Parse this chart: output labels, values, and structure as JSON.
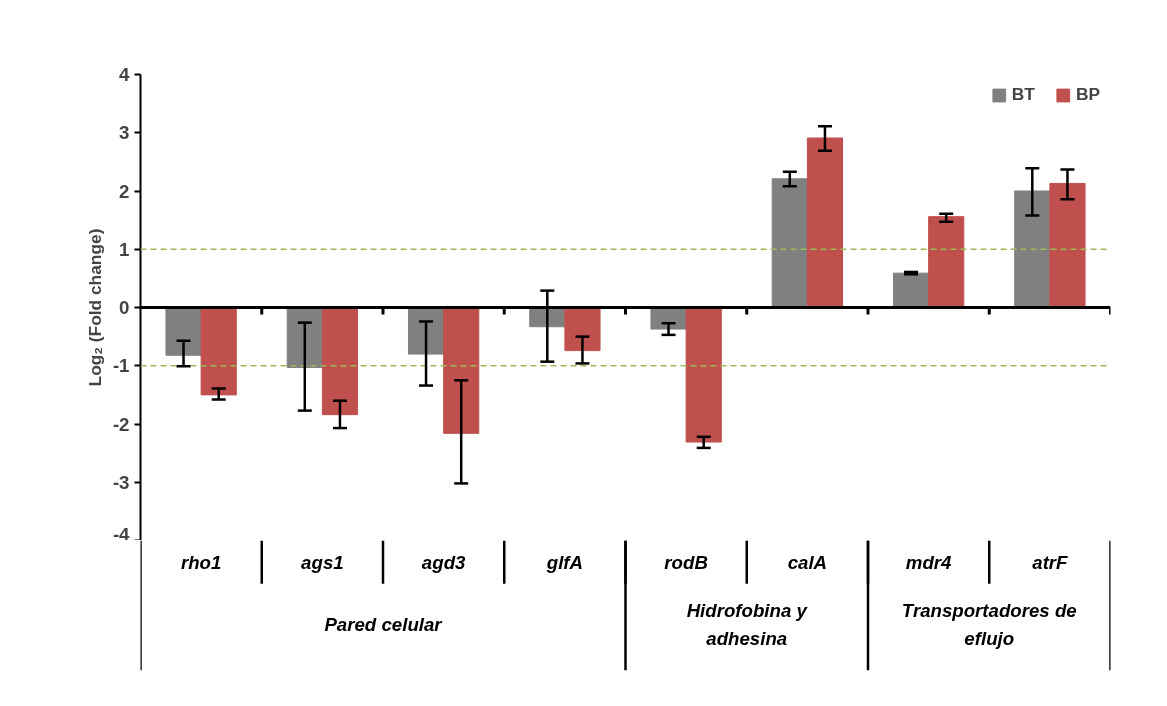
{
  "chart_data": {
    "type": "bar",
    "ylabel": "Log₂ (Fold change)",
    "categories": [
      "rho1",
      "ags1",
      "agd3",
      "glfA",
      "rodB",
      "calA",
      "mdr4",
      "atrF"
    ],
    "series": [
      {
        "name": "BT",
        "color": "#808080",
        "values": [
          -0.82,
          -1.03,
          -0.8,
          -0.33,
          -0.37,
          2.21,
          0.59,
          2.0
        ],
        "errors": [
          [
            -1.01,
            -0.57
          ],
          [
            -1.77,
            -0.26
          ],
          [
            -1.34,
            -0.24
          ],
          [
            -0.93,
            0.29
          ],
          [
            -0.47,
            -0.27
          ],
          [
            2.08,
            2.33
          ],
          [
            0.57,
            0.61
          ],
          [
            1.58,
            2.39
          ]
        ]
      },
      {
        "name": "BP",
        "color": "#c0504d",
        "values": [
          -1.5,
          -1.84,
          -2.16,
          -0.74,
          -2.31,
          2.91,
          1.56,
          2.13
        ],
        "errors": [
          [
            -1.58,
            -1.39
          ],
          [
            -2.07,
            -1.6
          ],
          [
            -3.02,
            -1.25
          ],
          [
            -0.96,
            -0.5
          ],
          [
            -2.41,
            -2.22
          ],
          [
            2.69,
            3.11
          ],
          [
            1.47,
            1.61
          ],
          [
            1.86,
            2.37
          ]
        ]
      }
    ],
    "ylim": [
      -4,
      4
    ],
    "yticks": [
      -4,
      -3,
      -2,
      -1,
      0,
      1,
      2,
      3,
      4
    ],
    "ref_lines": [
      {
        "axis": "y",
        "value": 1,
        "color": "#9bbb59",
        "line_style": "dashed"
      },
      {
        "axis": "y",
        "value": -1,
        "color": "#9bbb59",
        "line_style": "dashed"
      }
    ],
    "annotations": [
      "Pared celular",
      "Hidrofobina y adhesina",
      "Transportadores de eflujo"
    ],
    "legend": "top right",
    "grid": false
  }
}
